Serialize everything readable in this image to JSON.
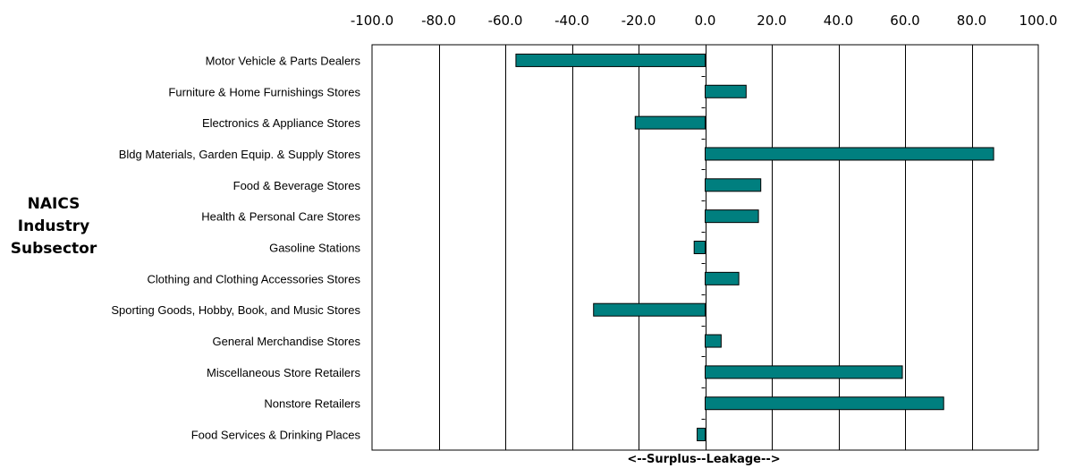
{
  "chart_data": {
    "type": "bar",
    "orientation": "horizontal",
    "title": "",
    "xlabel": "<--Surplus--Leakage-->",
    "ylabel": [
      "NAICS",
      "Industry",
      "Subsector"
    ],
    "xlim": [
      -100.0,
      100.0
    ],
    "x_ticks": [
      "-100.0",
      "-80.0",
      "-60.0",
      "-40.0",
      "-20.0",
      "0.0",
      "20.0",
      "40.0",
      "60.0",
      "80.0",
      "100.0"
    ],
    "x_tick_values": [
      -100,
      -80,
      -60,
      -40,
      -20,
      0,
      20,
      40,
      60,
      80,
      100
    ],
    "grid": true,
    "bar_color": "#007f7f",
    "categories": [
      "Motor Vehicle & Parts Dealers",
      "Furniture & Home Furnishings Stores",
      "Electronics & Appliance Stores",
      "Bldg Materials, Garden Equip. & Supply Stores",
      "Food & Beverage Stores",
      "Health & Personal Care Stores",
      "Gasoline Stations",
      "Clothing and Clothing Accessories Stores",
      "Sporting Goods, Hobby, Book, and Music Stores",
      "General Merchandise Stores",
      "Miscellaneous Store Retailers",
      "Nonstore Retailers",
      "Food Services & Drinking Places"
    ],
    "values": [
      -56.8,
      12.3,
      -21.0,
      86.6,
      16.7,
      16.0,
      -3.3,
      10.1,
      -33.5,
      4.8,
      59.2,
      71.6,
      -2.4
    ]
  }
}
